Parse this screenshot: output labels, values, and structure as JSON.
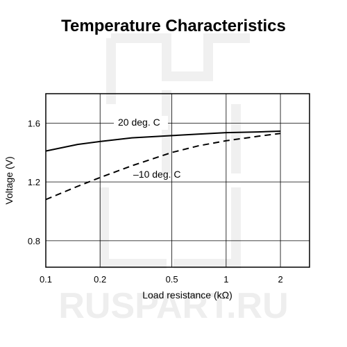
{
  "chart_data": {
    "type": "line",
    "title": "Temperature Characteristics",
    "xlabel": "Load resistance (kΩ)",
    "ylabel": "Voltage (V)",
    "xscale": "log",
    "xlim": [
      0.1,
      2.9
    ],
    "ylim": [
      0.62,
      1.8
    ],
    "xticks": [
      {
        "value": 0.1,
        "label": "0.1"
      },
      {
        "value": 0.2,
        "label": "0.2"
      },
      {
        "value": 0.5,
        "label": "0.5"
      },
      {
        "value": 1,
        "label": "1"
      },
      {
        "value": 2,
        "label": "2"
      }
    ],
    "yticks": [
      {
        "value": 0.8,
        "label": "0.8"
      },
      {
        "value": 1.2,
        "label": "1.2"
      },
      {
        "value": 1.6,
        "label": "1.6"
      }
    ],
    "grid": true,
    "series": [
      {
        "name": "20 deg. C",
        "style": "solid",
        "color": "#000000",
        "x": [
          0.1,
          0.15,
          0.2,
          0.3,
          0.5,
          0.7,
          1.0,
          1.5,
          2.0
        ],
        "y": [
          1.41,
          1.455,
          1.475,
          1.5,
          1.515,
          1.525,
          1.535,
          1.54,
          1.545
        ]
      },
      {
        "name": "–10 deg. C",
        "style": "dashed",
        "color": "#000000",
        "x": [
          0.1,
          0.15,
          0.2,
          0.3,
          0.5,
          0.7,
          1.0,
          1.5,
          2.0
        ],
        "y": [
          1.08,
          1.17,
          1.23,
          1.31,
          1.4,
          1.445,
          1.48,
          1.51,
          1.53
        ]
      }
    ]
  },
  "watermark": "RUSPART.RU"
}
